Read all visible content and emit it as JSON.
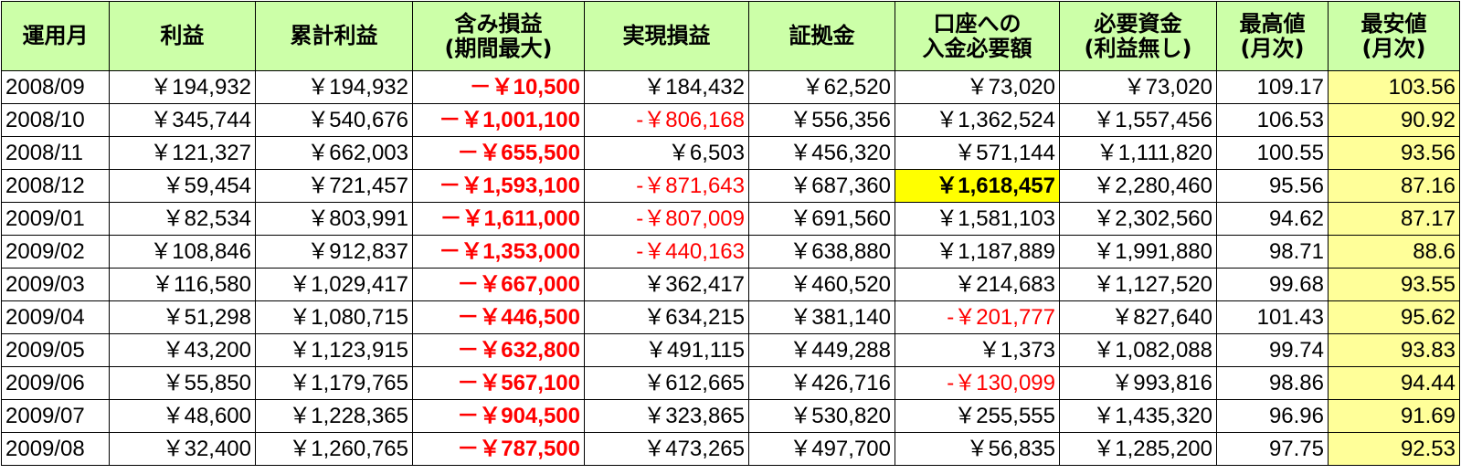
{
  "headers": [
    {
      "line1": "運用月",
      "line2": ""
    },
    {
      "line1": "利益",
      "line2": ""
    },
    {
      "line1": "累計利益",
      "line2": ""
    },
    {
      "line1": "含み損益",
      "line2": "(期間最大)"
    },
    {
      "line1": "実現損益",
      "line2": ""
    },
    {
      "line1": "証拠金",
      "line2": ""
    },
    {
      "line1": "口座への",
      "line2": "入金必要額"
    },
    {
      "line1": "必要資金",
      "line2": "(利益無し)"
    },
    {
      "line1": "最高値",
      "line2": "(月次)"
    },
    {
      "line1": "最安値",
      "line2": "(月次)"
    }
  ],
  "rows": [
    [
      "2008/09",
      "￥194,932",
      "￥194,932",
      "－￥10,500",
      "￥184,432",
      "￥62,520",
      "￥73,020",
      "￥73,020",
      "109.17",
      "103.56"
    ],
    [
      "2008/10",
      "￥345,744",
      "￥540,676",
      "－￥1,001,100",
      "-￥806,168",
      "￥556,356",
      "￥1,362,524",
      "￥1,557,456",
      "106.53",
      "90.92"
    ],
    [
      "2008/11",
      "￥121,327",
      "￥662,003",
      "－￥655,500",
      "￥6,503",
      "￥456,320",
      "￥571,144",
      "￥1,111,820",
      "100.55",
      "93.56"
    ],
    [
      "2008/12",
      "￥59,454",
      "￥721,457",
      "－￥1,593,100",
      "-￥871,643",
      "￥687,360",
      "￥1,618,457",
      "￥2,280,460",
      "95.56",
      "87.16"
    ],
    [
      "2009/01",
      "￥82,534",
      "￥803,991",
      "－￥1,611,000",
      "-￥807,009",
      "￥691,560",
      "￥1,581,103",
      "￥2,302,560",
      "94.62",
      "87.17"
    ],
    [
      "2009/02",
      "￥108,846",
      "￥912,837",
      "－￥1,353,000",
      "-￥440,163",
      "￥638,880",
      "￥1,187,889",
      "￥1,991,880",
      "98.71",
      "88.6"
    ],
    [
      "2009/03",
      "￥116,580",
      "￥1,029,417",
      "－￥667,000",
      "￥362,417",
      "￥460,520",
      "￥214,683",
      "￥1,127,520",
      "99.68",
      "93.55"
    ],
    [
      "2009/04",
      "￥51,298",
      "￥1,080,715",
      "－￥446,500",
      "￥634,215",
      "￥381,140",
      "-￥201,777",
      "￥827,640",
      "101.43",
      "95.62"
    ],
    [
      "2009/05",
      "￥43,200",
      "￥1,123,915",
      "－￥632,800",
      "￥491,115",
      "￥449,288",
      "￥1,373",
      "￥1,082,088",
      "99.74",
      "93.83"
    ],
    [
      "2009/06",
      "￥55,850",
      "￥1,179,765",
      "－￥567,100",
      "￥612,665",
      "￥426,716",
      "-￥130,099",
      "￥993,816",
      "98.86",
      "94.44"
    ],
    [
      "2009/07",
      "￥48,600",
      "￥1,228,365",
      "－￥904,500",
      "￥323,865",
      "￥530,820",
      "￥255,555",
      "￥1,435,320",
      "96.96",
      "91.69"
    ],
    [
      "2009/08",
      "￥32,400",
      "￥1,260,765",
      "－￥787,500",
      "￥473,265",
      "￥497,700",
      "￥56,835",
      "￥1,285,200",
      "97.75",
      "92.53"
    ]
  ],
  "highlight_cell": {
    "row": 3,
    "col": 6
  },
  "colors": {
    "header_bg": "#ccffa8",
    "low_col_bg": "#ffff99",
    "highlight_bg": "#ffff00",
    "negative_text": "#ff0000"
  }
}
